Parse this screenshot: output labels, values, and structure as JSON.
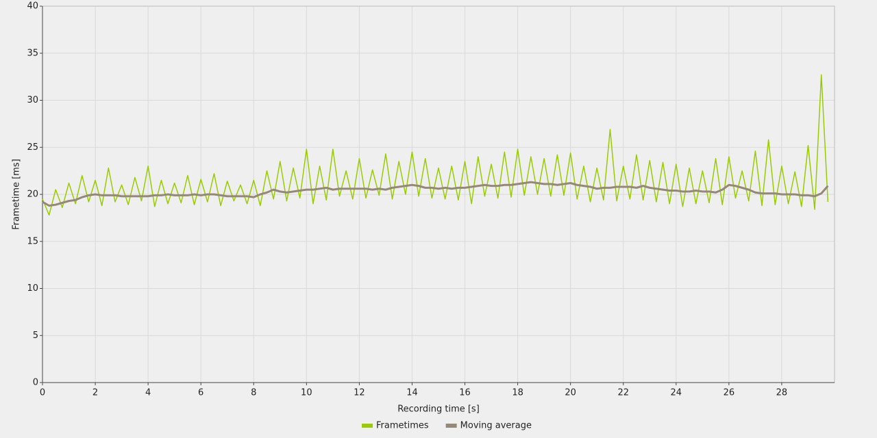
{
  "chart_data": {
    "type": "line",
    "x_label": "Recording time [s]",
    "y_label": "Frametime [ms]",
    "x": [
      0,
      0.25,
      0.5,
      0.75,
      1,
      1.25,
      1.5,
      1.75,
      2,
      2.25,
      2.5,
      2.75,
      3,
      3.25,
      3.5,
      3.75,
      4,
      4.25,
      4.5,
      4.75,
      5,
      5.25,
      5.5,
      5.75,
      6,
      6.25,
      6.5,
      6.75,
      7,
      7.25,
      7.5,
      7.75,
      8,
      8.25,
      8.5,
      8.75,
      9,
      9.25,
      9.5,
      9.75,
      10,
      10.25,
      10.5,
      10.75,
      11,
      11.25,
      11.5,
      11.75,
      12,
      12.25,
      12.5,
      12.75,
      13,
      13.25,
      13.5,
      13.75,
      14,
      14.25,
      14.5,
      14.75,
      15,
      15.25,
      15.5,
      15.75,
      16,
      16.25,
      16.5,
      16.75,
      17,
      17.25,
      17.5,
      17.75,
      18,
      18.25,
      18.5,
      18.75,
      19,
      19.25,
      19.5,
      19.75,
      20,
      20.25,
      20.5,
      20.75,
      21,
      21.25,
      21.5,
      21.75,
      22,
      22.25,
      22.5,
      22.75,
      23,
      23.25,
      23.5,
      23.75,
      24,
      24.25,
      24.5,
      24.75,
      25,
      25.25,
      25.5,
      25.75,
      26,
      26.25,
      26.5,
      26.75,
      27,
      27.25,
      27.5,
      27.75,
      28,
      28.25,
      28.5,
      28.75,
      29,
      29.25,
      29.5,
      29.75
    ],
    "series": [
      {
        "name": "Frametimes",
        "color": "#99cc00",
        "values": [
          19.5,
          17.8,
          20.5,
          18.6,
          21.2,
          19.0,
          22.0,
          19.2,
          21.5,
          18.8,
          22.8,
          19.2,
          21.0,
          18.9,
          21.8,
          19.3,
          23.0,
          18.7,
          21.5,
          19.0,
          21.2,
          19.1,
          22.0,
          18.9,
          21.6,
          19.2,
          22.2,
          18.8,
          21.4,
          19.3,
          21.0,
          19.0,
          21.5,
          18.8,
          22.5,
          19.5,
          23.5,
          19.3,
          22.8,
          19.6,
          24.8,
          19.0,
          23.0,
          19.4,
          24.8,
          19.8,
          22.5,
          19.5,
          23.8,
          19.6,
          22.6,
          19.9,
          24.3,
          19.5,
          23.5,
          20.0,
          24.5,
          19.8,
          23.8,
          19.6,
          22.8,
          19.5,
          23.0,
          19.4,
          23.5,
          19.0,
          24.0,
          19.8,
          23.2,
          19.6,
          24.5,
          19.7,
          24.8,
          19.9,
          24.0,
          20.0,
          23.8,
          19.8,
          24.2,
          19.9,
          24.4,
          19.5,
          23.0,
          19.2,
          22.8,
          19.4,
          26.9,
          19.3,
          23.0,
          19.5,
          24.2,
          19.4,
          23.6,
          19.2,
          23.4,
          19.0,
          23.2,
          18.7,
          22.8,
          19.0,
          22.5,
          19.1,
          23.8,
          18.9,
          24.0,
          19.6,
          22.5,
          19.3,
          24.6,
          18.8,
          25.8,
          18.9,
          23.0,
          19.0,
          22.4,
          18.7,
          25.2,
          18.4,
          32.7,
          19.2
        ]
      },
      {
        "name": "Moving average",
        "color": "#958878",
        "values": [
          19.2,
          18.8,
          18.9,
          19.1,
          19.3,
          19.4,
          19.7,
          19.9,
          20.0,
          19.9,
          19.9,
          19.9,
          19.8,
          19.8,
          19.8,
          19.8,
          19.8,
          19.9,
          19.9,
          20.0,
          19.9,
          19.9,
          19.9,
          20.0,
          19.9,
          20.0,
          20.0,
          19.9,
          19.8,
          19.8,
          19.8,
          19.8,
          19.7,
          20.0,
          20.2,
          20.5,
          20.3,
          20.2,
          20.3,
          20.4,
          20.5,
          20.5,
          20.6,
          20.7,
          20.5,
          20.6,
          20.6,
          20.6,
          20.6,
          20.6,
          20.5,
          20.6,
          20.5,
          20.7,
          20.8,
          20.9,
          21.0,
          20.9,
          20.7,
          20.7,
          20.6,
          20.7,
          20.6,
          20.7,
          20.7,
          20.8,
          20.9,
          21.0,
          20.9,
          20.9,
          21.0,
          21.0,
          21.1,
          21.2,
          21.3,
          21.2,
          21.1,
          21.1,
          21.0,
          21.1,
          21.2,
          21.0,
          20.9,
          20.8,
          20.6,
          20.7,
          20.7,
          20.8,
          20.8,
          20.8,
          20.7,
          20.9,
          20.7,
          20.6,
          20.5,
          20.4,
          20.4,
          20.3,
          20.3,
          20.4,
          20.3,
          20.3,
          20.2,
          20.5,
          21.0,
          20.9,
          20.7,
          20.5,
          20.2,
          20.1,
          20.1,
          20.1,
          20.0,
          20.0,
          20.0,
          19.9,
          19.9,
          19.8,
          20.1,
          20.9
        ]
      }
    ],
    "xlim": [
      0,
      30
    ],
    "xticks": [
      0,
      2,
      4,
      6,
      8,
      10,
      12,
      14,
      16,
      18,
      20,
      22,
      24,
      26,
      28
    ],
    "ylim": [
      0,
      40
    ],
    "yticks": [
      0,
      5,
      10,
      15,
      20,
      25,
      30,
      35,
      40
    ],
    "grid": true,
    "legend": "bottom"
  }
}
